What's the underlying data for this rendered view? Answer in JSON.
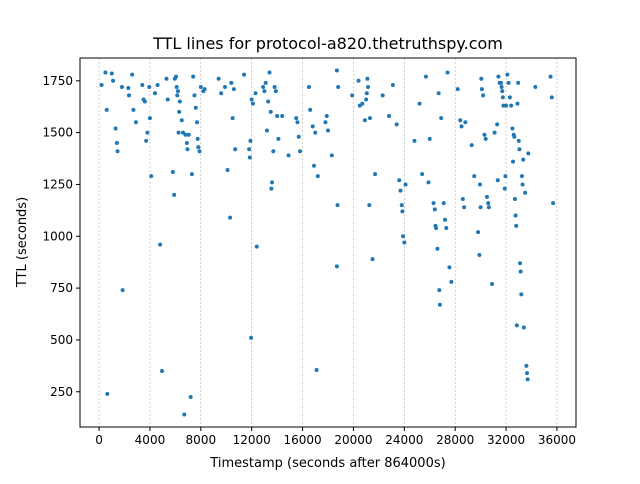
{
  "chart_data": {
    "type": "scatter",
    "title": "TTL lines for protocol-a820.thetruthspy.com",
    "xlabel": "Timestamp (seconds after 864000s)",
    "ylabel": "TTL (seconds)",
    "xlim": [
      -1500,
      37500
    ],
    "ylim": [
      80,
      1860
    ],
    "xticks": [
      0,
      4000,
      8000,
      12000,
      16000,
      20000,
      24000,
      28000,
      32000,
      36000
    ],
    "xtick_labels": [
      "0",
      "4000",
      "8000",
      "12000",
      "16000",
      "20000",
      "24000",
      "28000",
      "32000",
      "36000"
    ],
    "yticks": [
      250,
      500,
      750,
      1000,
      1250,
      1500,
      1750
    ],
    "ytick_labels": [
      "250",
      "500",
      "750",
      "1000",
      "1250",
      "1500",
      "1750"
    ],
    "grid": "vertical dashed lines",
    "colors": {
      "points": "#1f77b4",
      "grid": "#b0b0b0"
    },
    "series": [
      {
        "points": [
          [
            200,
            1730
          ],
          [
            500,
            1790
          ],
          [
            600,
            1610
          ],
          [
            650,
            240
          ],
          [
            1000,
            1785
          ],
          [
            1100,
            1750
          ],
          [
            1300,
            1520
          ],
          [
            1400,
            1450
          ],
          [
            1450,
            1410
          ],
          [
            1800,
            1720
          ],
          [
            1850,
            740
          ],
          [
            2300,
            1715
          ],
          [
            2350,
            1680
          ],
          [
            2600,
            1780
          ],
          [
            2700,
            1610
          ],
          [
            2900,
            1550
          ],
          [
            3400,
            1730
          ],
          [
            3500,
            1660
          ],
          [
            3600,
            1650
          ],
          [
            3800,
            1500
          ],
          [
            3700,
            1460
          ],
          [
            4000,
            1570
          ],
          [
            3950,
            1720
          ],
          [
            4100,
            1290
          ],
          [
            4400,
            1690
          ],
          [
            4600,
            1730
          ],
          [
            4800,
            960
          ],
          [
            4950,
            350
          ],
          [
            5300,
            1760
          ],
          [
            5400,
            1660
          ],
          [
            5800,
            1310
          ],
          [
            5900,
            1200
          ],
          [
            5950,
            1760
          ],
          [
            6050,
            1770
          ],
          [
            6100,
            1720
          ],
          [
            6150,
            1680
          ],
          [
            6200,
            1700
          ],
          [
            6300,
            1600
          ],
          [
            6250,
            1500
          ],
          [
            6350,
            1650
          ],
          [
            6500,
            1560
          ],
          [
            6600,
            1500
          ],
          [
            6700,
            140
          ],
          [
            6800,
            1490
          ],
          [
            6900,
            1450
          ],
          [
            6950,
            1420
          ],
          [
            7050,
            1490
          ],
          [
            7200,
            225
          ],
          [
            7300,
            1300
          ],
          [
            7400,
            1770
          ],
          [
            7500,
            1680
          ],
          [
            7600,
            1620
          ],
          [
            7700,
            1550
          ],
          [
            7750,
            1470
          ],
          [
            7800,
            1430
          ],
          [
            7900,
            1410
          ],
          [
            8000,
            1720
          ],
          [
            8200,
            1700
          ],
          [
            8300,
            1710
          ],
          [
            9400,
            1760
          ],
          [
            9600,
            1690
          ],
          [
            9900,
            1720
          ],
          [
            10100,
            1320
          ],
          [
            10300,
            1090
          ],
          [
            10400,
            1740
          ],
          [
            10500,
            1570
          ],
          [
            10600,
            1710
          ],
          [
            10700,
            1420
          ],
          [
            11400,
            1780
          ],
          [
            11800,
            1420
          ],
          [
            11850,
            1380
          ],
          [
            11900,
            1460
          ],
          [
            11950,
            510
          ],
          [
            12000,
            1660
          ],
          [
            12100,
            1640
          ],
          [
            12300,
            1690
          ],
          [
            12400,
            950
          ],
          [
            12900,
            1720
          ],
          [
            13000,
            1700
          ],
          [
            13100,
            1740
          ],
          [
            13200,
            1510
          ],
          [
            13300,
            1650
          ],
          [
            13400,
            1790
          ],
          [
            13500,
            1600
          ],
          [
            13550,
            1230
          ],
          [
            13600,
            1260
          ],
          [
            13700,
            1410
          ],
          [
            13800,
            1720
          ],
          [
            13900,
            1700
          ],
          [
            14000,
            1580
          ],
          [
            14100,
            1470
          ],
          [
            14400,
            1580
          ],
          [
            14900,
            1390
          ],
          [
            15500,
            1570
          ],
          [
            15600,
            1550
          ],
          [
            15700,
            1480
          ],
          [
            15800,
            1410
          ],
          [
            16500,
            1720
          ],
          [
            16600,
            1610
          ],
          [
            16800,
            1530
          ],
          [
            16900,
            1340
          ],
          [
            17000,
            1500
          ],
          [
            17200,
            1290
          ],
          [
            17100,
            355
          ],
          [
            17800,
            1550
          ],
          [
            17900,
            1580
          ],
          [
            18000,
            1510
          ],
          [
            18300,
            1390
          ],
          [
            18700,
            1800
          ],
          [
            18800,
            1720
          ],
          [
            18750,
            1150
          ],
          [
            18700,
            855
          ],
          [
            19900,
            1680
          ],
          [
            20400,
            1750
          ],
          [
            20500,
            1630
          ],
          [
            20700,
            1640
          ],
          [
            20900,
            1560
          ],
          [
            21000,
            1660
          ],
          [
            21050,
            1690
          ],
          [
            21100,
            1760
          ],
          [
            21150,
            1720
          ],
          [
            21250,
            1150
          ],
          [
            21300,
            1570
          ],
          [
            21500,
            890
          ],
          [
            21700,
            1300
          ],
          [
            22300,
            1680
          ],
          [
            22800,
            1580
          ],
          [
            23100,
            1730
          ],
          [
            23400,
            1540
          ],
          [
            23600,
            1270
          ],
          [
            23700,
            1220
          ],
          [
            23800,
            1150
          ],
          [
            23850,
            1120
          ],
          [
            23900,
            1000
          ],
          [
            24000,
            970
          ],
          [
            24100,
            1250
          ],
          [
            24800,
            1460
          ],
          [
            25200,
            1640
          ],
          [
            25400,
            1300
          ],
          [
            25700,
            1770
          ],
          [
            25900,
            1260
          ],
          [
            26000,
            1470
          ],
          [
            26300,
            1160
          ],
          [
            26400,
            1130
          ],
          [
            26450,
            1050
          ],
          [
            26500,
            1040
          ],
          [
            26600,
            940
          ],
          [
            26700,
            1690
          ],
          [
            26750,
            740
          ],
          [
            26800,
            670
          ],
          [
            26900,
            1570
          ],
          [
            27100,
            1160
          ],
          [
            27200,
            1080
          ],
          [
            27300,
            1040
          ],
          [
            27400,
            1790
          ],
          [
            27550,
            850
          ],
          [
            27700,
            780
          ],
          [
            28200,
            1710
          ],
          [
            28400,
            1560
          ],
          [
            28500,
            1530
          ],
          [
            28600,
            1180
          ],
          [
            28700,
            1140
          ],
          [
            28800,
            1550
          ],
          [
            29300,
            1440
          ],
          [
            29500,
            1290
          ],
          [
            29800,
            1020
          ],
          [
            29900,
            910
          ],
          [
            29950,
            1250
          ],
          [
            30000,
            1140
          ],
          [
            30050,
            1760
          ],
          [
            30100,
            1710
          ],
          [
            30200,
            1680
          ],
          [
            30300,
            1490
          ],
          [
            30400,
            1470
          ],
          [
            30500,
            1190
          ],
          [
            30600,
            1160
          ],
          [
            30650,
            1140
          ],
          [
            30900,
            770
          ],
          [
            31100,
            1500
          ],
          [
            31300,
            1540
          ],
          [
            31350,
            1270
          ],
          [
            31400,
            1770
          ],
          [
            31500,
            1740
          ],
          [
            31600,
            1740
          ],
          [
            31650,
            1720
          ],
          [
            31700,
            1700
          ],
          [
            31750,
            1670
          ],
          [
            31800,
            1630
          ],
          [
            31900,
            1230
          ],
          [
            31950,
            1290
          ],
          [
            32000,
            1630
          ],
          [
            32100,
            1780
          ],
          [
            32200,
            1740
          ],
          [
            32300,
            1670
          ],
          [
            32400,
            1630
          ],
          [
            32500,
            1520
          ],
          [
            32550,
            1360
          ],
          [
            32600,
            1490
          ],
          [
            32650,
            1480
          ],
          [
            32700,
            1180
          ],
          [
            32750,
            1100
          ],
          [
            32800,
            1050
          ],
          [
            32850,
            570
          ],
          [
            32900,
            1640
          ],
          [
            32950,
            1740
          ],
          [
            33000,
            1460
          ],
          [
            33050,
            1420
          ],
          [
            33100,
            870
          ],
          [
            33150,
            830
          ],
          [
            33200,
            720
          ],
          [
            33250,
            1290
          ],
          [
            33300,
            1250
          ],
          [
            33350,
            1370
          ],
          [
            33400,
            560
          ],
          [
            33500,
            1210
          ],
          [
            33600,
            375
          ],
          [
            33650,
            340
          ],
          [
            33700,
            310
          ],
          [
            33750,
            1400
          ],
          [
            34300,
            1720
          ],
          [
            35500,
            1770
          ],
          [
            35600,
            1670
          ],
          [
            35700,
            1160
          ]
        ]
      }
    ]
  }
}
